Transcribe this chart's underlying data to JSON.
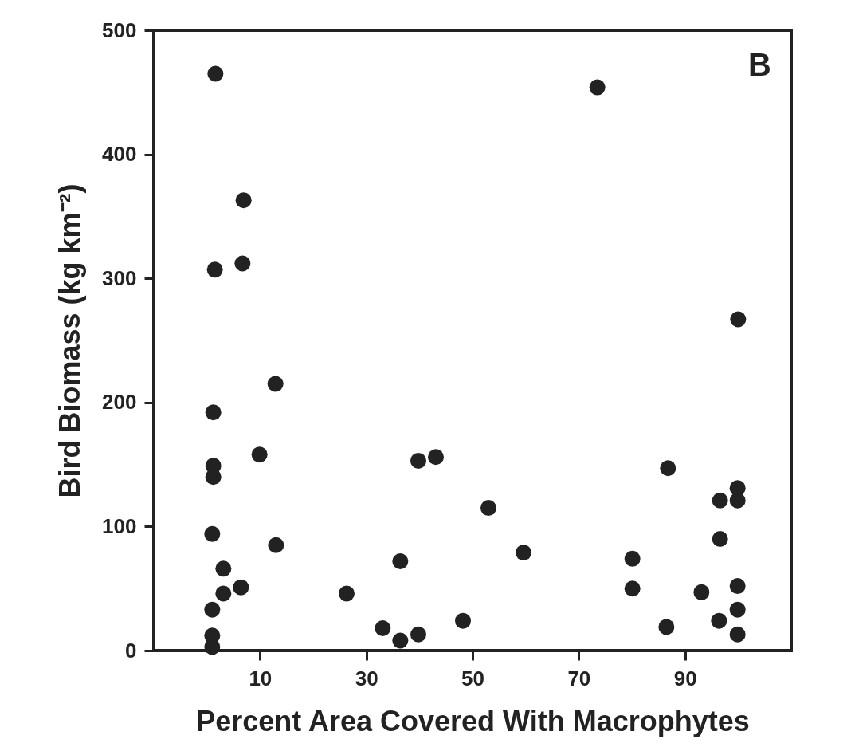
{
  "chart_data": {
    "type": "scatter",
    "xlabel": "Percent Area Covered With Macrophytes",
    "ylabel": "Bird Biomass (kg km⁻²)",
    "annotations": [
      "B"
    ],
    "x": [
      1.6,
      6.9,
      1.5,
      6.7,
      12.9,
      1.2,
      9.9,
      1.2,
      1.2,
      39.8,
      43.1,
      1.0,
      13.0,
      36.4,
      3.1,
      3.1,
      6.4,
      26.3,
      1.0,
      33.1,
      39.8,
      36.4,
      1.0,
      1.0,
      48.2,
      73.5,
      100,
      53.0,
      59.6,
      86.8,
      99.9,
      96.6,
      99.9,
      96.6,
      80.1,
      80.1,
      93.1,
      99.9,
      99.9,
      96.4,
      86.5,
      99.9
    ],
    "series": [
      {
        "color": "#222222",
        "values": [
          465,
          363,
          307,
          312,
          215,
          192,
          158,
          149,
          140,
          153,
          156,
          94,
          85,
          72,
          66,
          46,
          51,
          46,
          33,
          18,
          13,
          8,
          12,
          3,
          24,
          454,
          267,
          115,
          79,
          147,
          131,
          121,
          121,
          90,
          74,
          50,
          47,
          52,
          33,
          24,
          19,
          13
        ]
      }
    ],
    "xlim": [
      -10,
      110
    ],
    "xticks": [
      10,
      30,
      50,
      70,
      90
    ],
    "ylim": [
      0,
      500
    ],
    "yticks": [
      0,
      100,
      200,
      300,
      400,
      500
    ],
    "grid": false,
    "legend": false,
    "marker": "circle"
  }
}
